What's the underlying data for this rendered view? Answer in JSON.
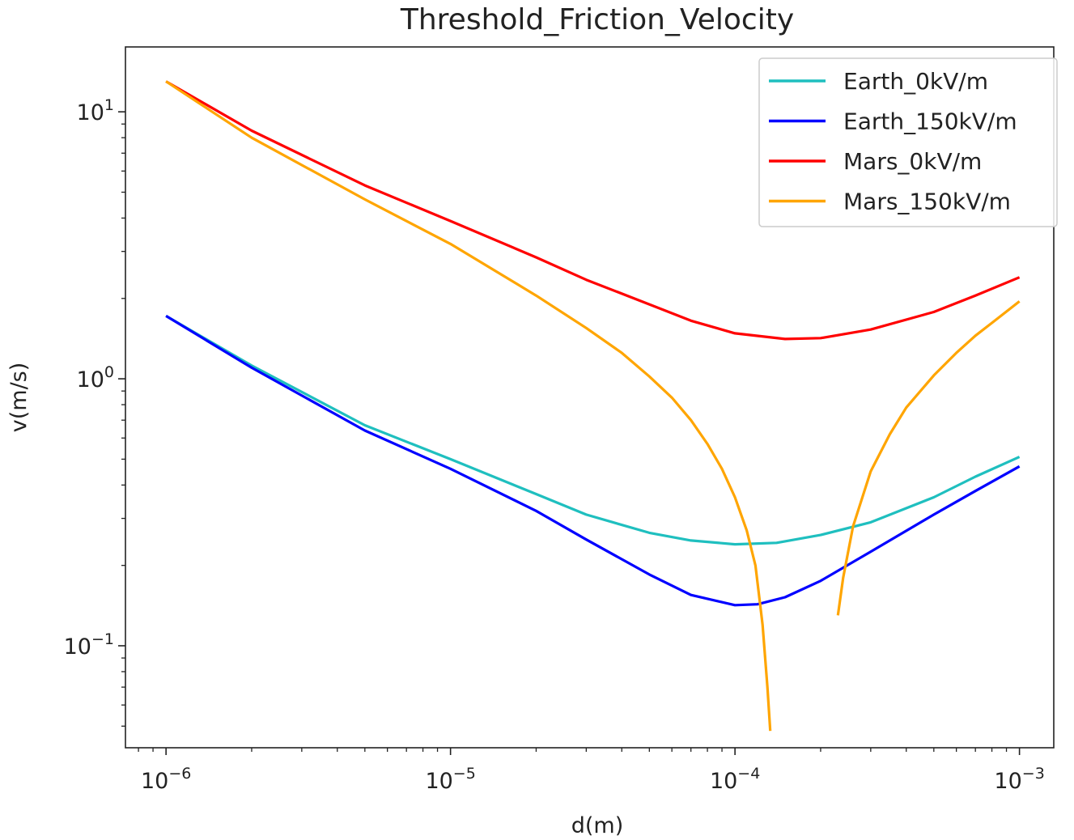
{
  "chart_data": {
    "type": "line",
    "title": "Threshold_Friction_Velocity",
    "xlabel": "d(m)",
    "ylabel": "v(m/s)",
    "xscale": "log",
    "yscale": "log",
    "xlim": [
      7.2e-07,
      0.00132
    ],
    "ylim": [
      0.0415,
      17.5
    ],
    "grid": false,
    "legend_position": "top-right",
    "x_ticks": [
      {
        "value": 1e-06,
        "base": "10",
        "exp": "−6"
      },
      {
        "value": 1e-05,
        "base": "10",
        "exp": "−5"
      },
      {
        "value": 0.0001,
        "base": "10",
        "exp": "−4"
      },
      {
        "value": 0.001,
        "base": "10",
        "exp": "−3"
      }
    ],
    "y_ticks": [
      {
        "value": 0.1,
        "base": "10",
        "exp": "−1"
      },
      {
        "value": 1,
        "base": "10",
        "exp": "0"
      },
      {
        "value": 10,
        "base": "10",
        "exp": "1"
      }
    ],
    "series": [
      {
        "name": "Earth_0kV/m",
        "color": "#1fbfbf",
        "segments": [
          [
            [
              1e-06,
              1.72
            ],
            [
              2e-06,
              1.12
            ],
            [
              5e-06,
              0.67
            ],
            [
              1e-05,
              0.5
            ],
            [
              2e-05,
              0.37
            ],
            [
              3e-05,
              0.31
            ],
            [
              5e-05,
              0.265
            ],
            [
              7e-05,
              0.248
            ],
            [
              0.0001,
              0.24
            ],
            [
              0.00014,
              0.243
            ],
            [
              0.0002,
              0.26
            ],
            [
              0.0003,
              0.29
            ],
            [
              0.0005,
              0.36
            ],
            [
              0.0007,
              0.43
            ],
            [
              0.001,
              0.51
            ]
          ]
        ]
      },
      {
        "name": "Earth_150kV/m",
        "color": "#0000ff",
        "segments": [
          [
            [
              1e-06,
              1.72
            ],
            [
              2e-06,
              1.1
            ],
            [
              5e-06,
              0.64
            ],
            [
              1e-05,
              0.46
            ],
            [
              2e-05,
              0.32
            ],
            [
              3e-05,
              0.25
            ],
            [
              5e-05,
              0.185
            ],
            [
              7e-05,
              0.155
            ],
            [
              0.0001,
              0.142
            ],
            [
              0.00012,
              0.143
            ],
            [
              0.00015,
              0.152
            ],
            [
              0.0002,
              0.175
            ],
            [
              0.0003,
              0.225
            ],
            [
              0.0005,
              0.31
            ],
            [
              0.0007,
              0.38
            ],
            [
              0.001,
              0.47
            ]
          ]
        ]
      },
      {
        "name": "Mars_0kV/m",
        "color": "#ff0000",
        "segments": [
          [
            [
              1e-06,
              13.0
            ],
            [
              2e-06,
              8.5
            ],
            [
              5e-06,
              5.3
            ],
            [
              1e-05,
              3.9
            ],
            [
              2e-05,
              2.85
            ],
            [
              3e-05,
              2.35
            ],
            [
              5e-05,
              1.9
            ],
            [
              7e-05,
              1.65
            ],
            [
              0.0001,
              1.48
            ],
            [
              0.00015,
              1.41
            ],
            [
              0.0002,
              1.42
            ],
            [
              0.0003,
              1.53
            ],
            [
              0.0005,
              1.78
            ],
            [
              0.0007,
              2.05
            ],
            [
              0.001,
              2.4
            ]
          ]
        ]
      },
      {
        "name": "Mars_150kV/m",
        "color": "#ffa500",
        "segments": [
          [
            [
              1e-06,
              13.0
            ],
            [
              2e-06,
              8.0
            ],
            [
              5e-06,
              4.7
            ],
            [
              1e-05,
              3.2
            ],
            [
              2e-05,
              2.05
            ],
            [
              3e-05,
              1.55
            ],
            [
              4e-05,
              1.25
            ],
            [
              5e-05,
              1.02
            ],
            [
              6e-05,
              0.85
            ],
            [
              7e-05,
              0.7
            ],
            [
              8e-05,
              0.57
            ],
            [
              9e-05,
              0.46
            ],
            [
              0.0001,
              0.36
            ],
            [
              0.00011,
              0.27
            ],
            [
              0.000118,
              0.2
            ],
            [
              0.000125,
              0.12
            ],
            [
              0.00013,
              0.07
            ],
            [
              0.000133,
              0.048
            ]
          ],
          [
            [
              0.00023,
              0.13
            ],
            [
              0.00024,
              0.18
            ],
            [
              0.00026,
              0.28
            ],
            [
              0.0003,
              0.45
            ],
            [
              0.00035,
              0.62
            ],
            [
              0.0004,
              0.78
            ],
            [
              0.0005,
              1.03
            ],
            [
              0.0006,
              1.25
            ],
            [
              0.0007,
              1.45
            ],
            [
              0.0008,
              1.62
            ],
            [
              0.001,
              1.95
            ]
          ]
        ]
      }
    ]
  }
}
